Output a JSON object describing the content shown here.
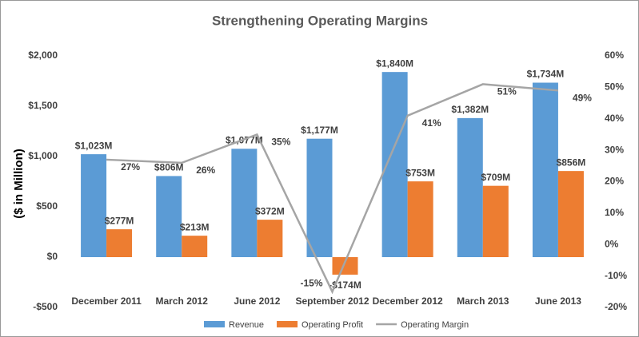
{
  "chart_data": {
    "type": "bar",
    "title": "Strengthening Operating Margins",
    "y_label": "($ in Million)",
    "categories": [
      "December 2011",
      "March 2012",
      "June 2012",
      "September 2012",
      "December 2012",
      "March 2013",
      "June 2013"
    ],
    "series": [
      {
        "name": "Revenue",
        "type": "bar",
        "color": "#5b9bd5",
        "values": [
          1023,
          806,
          1077,
          1177,
          1840,
          1382,
          1734
        ],
        "value_labels": [
          "$1,023M",
          "$806M",
          "$1,077M",
          "$1,177M",
          "$1,840M",
          "$1,382M",
          "$1,734M"
        ]
      },
      {
        "name": "Operating Profit",
        "type": "bar",
        "color": "#ed7d31",
        "values": [
          277,
          213,
          372,
          -174,
          753,
          709,
          856
        ],
        "value_labels": [
          "$277M",
          "$213M",
          "$372M",
          "-$174M",
          "$753M",
          "$709M",
          "$856M"
        ]
      },
      {
        "name": "Operating Margin",
        "type": "line",
        "axis": "y2",
        "color": "#a5a5a5",
        "values": [
          27,
          26,
          35,
          -15,
          41,
          51,
          49
        ],
        "value_labels": [
          "27%",
          "26%",
          "35%",
          "-15%",
          "41%",
          "51%",
          "49%"
        ]
      }
    ],
    "ylim": [
      -500,
      2000
    ],
    "yticks": [
      {
        "value": -500,
        "label": "-$500"
      },
      {
        "value": 0,
        "label": "$0"
      },
      {
        "value": 500,
        "label": "$500"
      },
      {
        "value": 1000,
        "label": "$1,000"
      },
      {
        "value": 1500,
        "label": "$1,500"
      },
      {
        "value": 2000,
        "label": "$2,000"
      }
    ],
    "y2lim": [
      -20,
      60
    ],
    "y2ticks": [
      {
        "value": -20,
        "label": "-20%"
      },
      {
        "value": -10,
        "label": "-10%"
      },
      {
        "value": 0,
        "label": "0%"
      },
      {
        "value": 10,
        "label": "10%"
      },
      {
        "value": 20,
        "label": "20%"
      },
      {
        "value": 30,
        "label": "30%"
      },
      {
        "value": 40,
        "label": "40%"
      },
      {
        "value": 50,
        "label": "50%"
      },
      {
        "value": 60,
        "label": "60%"
      }
    ],
    "legend": "bottom"
  }
}
